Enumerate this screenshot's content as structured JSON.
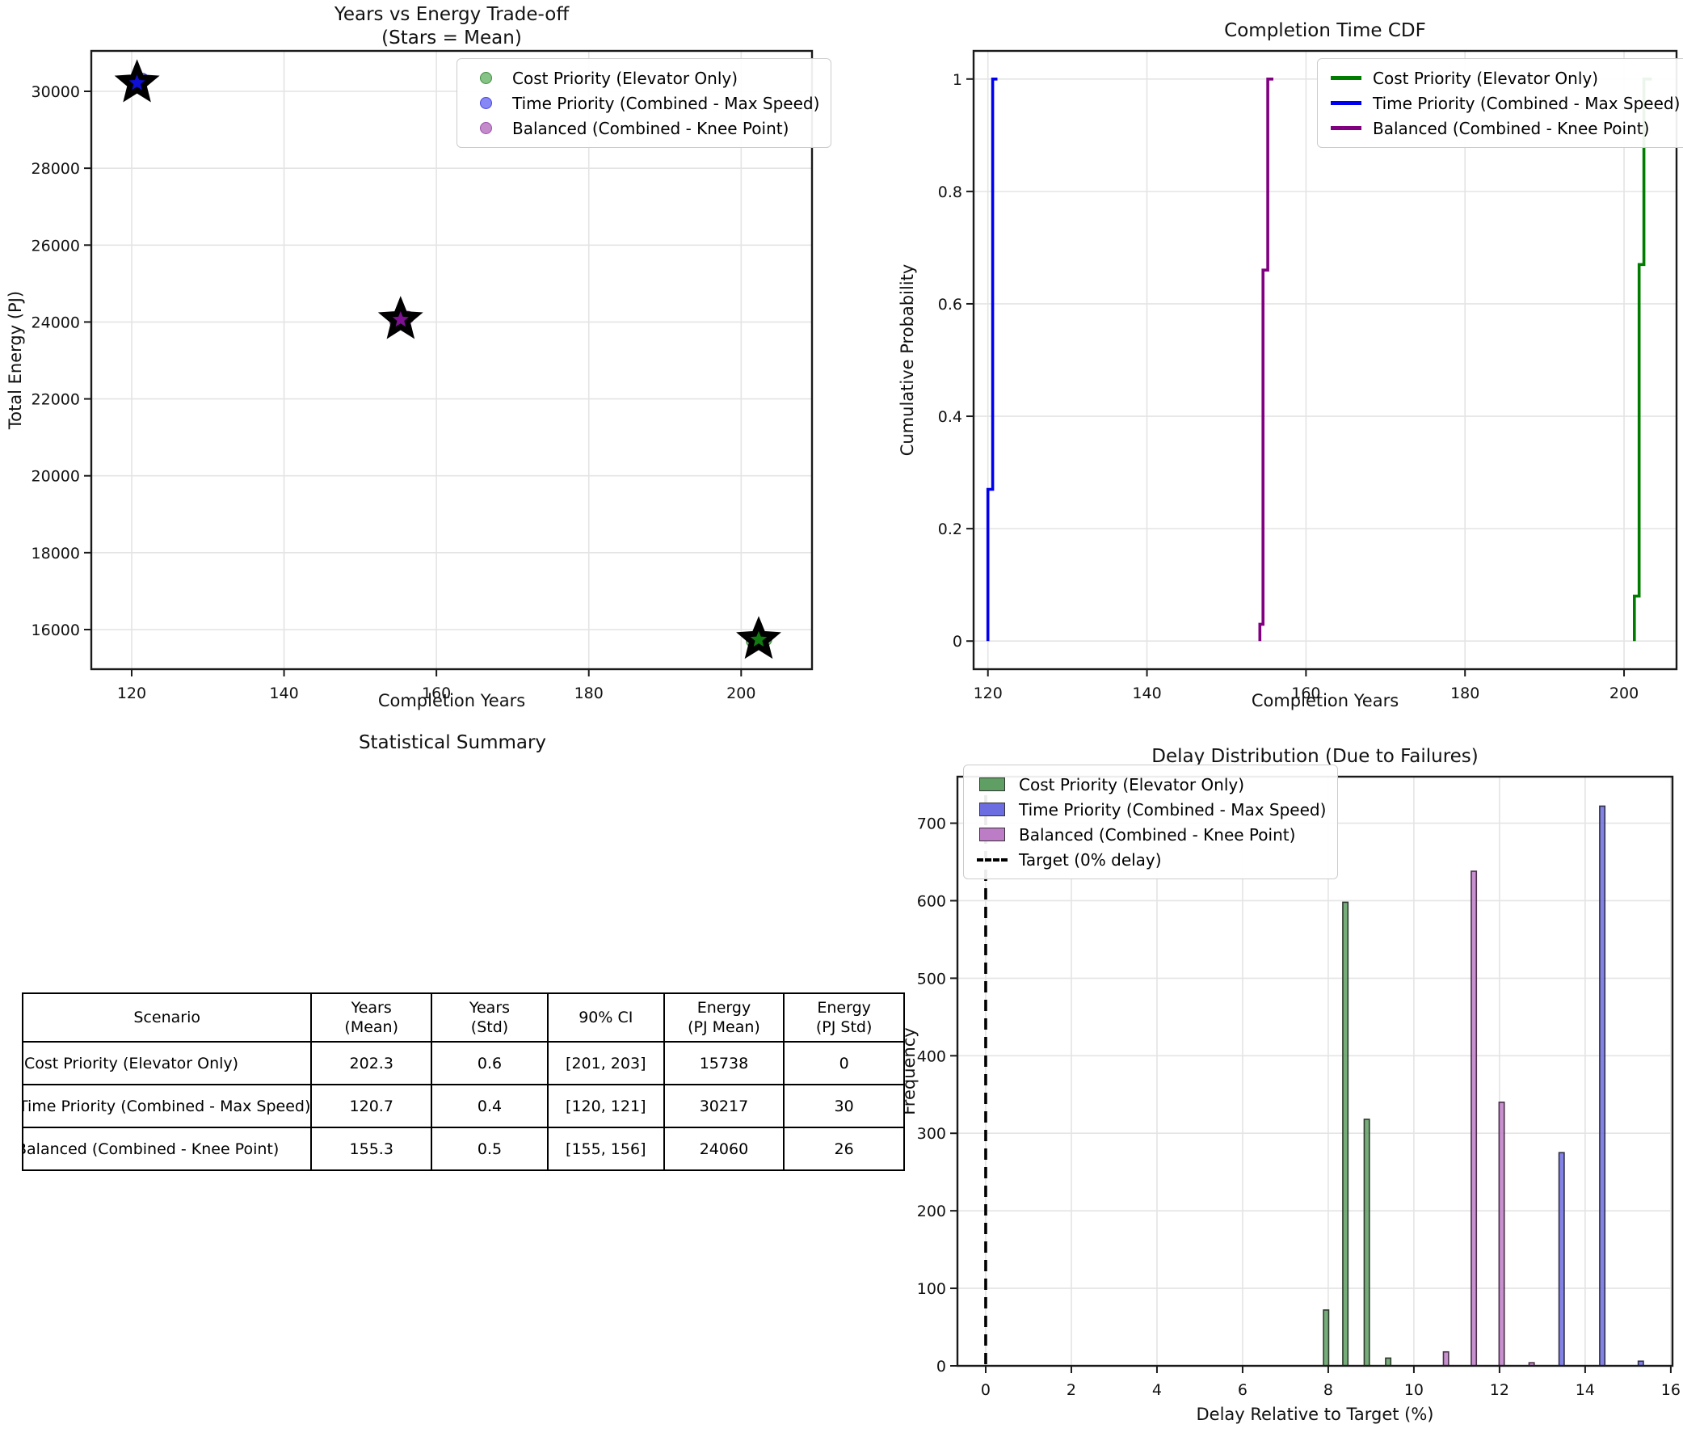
{
  "chart_data": [
    {
      "type": "scatter",
      "title": "Years vs Energy Trade-off\n(Stars = Mean)",
      "xlabel": "Completion Years",
      "ylabel": "Total Energy (PJ)",
      "xlim": [
        114.7,
        209.3
      ],
      "ylim": [
        14970,
        31051
      ],
      "xticks": [
        120,
        140,
        160,
        180,
        200
      ],
      "yticks": [
        16000,
        18000,
        20000,
        22000,
        24000,
        26000,
        28000,
        30000
      ],
      "grid": true,
      "legend_position": "upper right",
      "series": [
        {
          "name": "Cost Priority (Elevator Only)",
          "color": "#86c386",
          "edge": "#3f8f3f",
          "star_color": "#117a11",
          "points": [
            [
              201.5,
              15700
            ],
            [
              202.0,
              15760
            ],
            [
              202.9,
              15770
            ],
            [
              202.4,
              15690
            ],
            [
              203.2,
              15740
            ],
            [
              201.8,
              15725
            ]
          ],
          "mean": [
            202.3,
            15738
          ]
        },
        {
          "name": "Time Priority (Combined - Max Speed)",
          "color": "#8787f5",
          "edge": "#4646e0",
          "star_color": "#0f0fd6",
          "points": [
            [
              120.4,
              30180
            ],
            [
              120.8,
              30270
            ],
            [
              121.4,
              30310
            ],
            [
              120.6,
              30120
            ],
            [
              121.0,
              30230
            ],
            [
              120.3,
              30200
            ]
          ],
          "mean": [
            120.7,
            30217
          ]
        },
        {
          "name": "Balanced (Combined - Knee Point)",
          "color": "#c48bcb",
          "edge": "#9c4fae",
          "star_color": "#7d1191",
          "points": [
            [
              154.7,
              24000
            ],
            [
              155.1,
              24090
            ],
            [
              156.2,
              24120
            ],
            [
              154.9,
              23960
            ],
            [
              155.6,
              24040
            ],
            [
              156.0,
              24110
            ]
          ],
          "mean": [
            155.3,
            24060
          ]
        }
      ]
    },
    {
      "type": "line-step",
      "title": "Completion Time CDF",
      "xlabel": "Completion Years",
      "ylabel": "Cumulative Probability",
      "xlim": [
        118.2,
        206.6
      ],
      "ylim": [
        -0.05,
        1.05
      ],
      "xticks": [
        120,
        140,
        160,
        180,
        200
      ],
      "yticks": [
        0.0,
        0.2,
        0.4,
        0.6,
        0.8,
        1.0
      ],
      "grid": true,
      "legend_position": "upper right",
      "series": [
        {
          "name": "Cost Priority (Elevator Only)",
          "color": "#007c00",
          "points": [
            [
              201.3,
              0
            ],
            [
              201.3,
              0.08
            ],
            [
              201.9,
              0.08
            ],
            [
              201.9,
              0.67
            ],
            [
              202.5,
              0.67
            ],
            [
              202.5,
              1.0
            ],
            [
              203.5,
              1.0
            ]
          ]
        },
        {
          "name": "Time Priority (Combined - Max Speed)",
          "color": "#0000ee",
          "points": [
            [
              120.0,
              0
            ],
            [
              120.0,
              0.27
            ],
            [
              120.6,
              0.27
            ],
            [
              120.6,
              1.0
            ],
            [
              121.2,
              1.0
            ]
          ]
        },
        {
          "name": "Balanced (Combined - Knee Point)",
          "color": "#800080",
          "points": [
            [
              154.2,
              0
            ],
            [
              154.2,
              0.03
            ],
            [
              154.6,
              0.03
            ],
            [
              154.6,
              0.66
            ],
            [
              155.2,
              0.66
            ],
            [
              155.2,
              1.0
            ],
            [
              155.9,
              1.0
            ]
          ]
        }
      ]
    },
    {
      "type": "table",
      "title": "Statistical Summary",
      "headers": [
        "Scenario",
        "Years\n(Mean)",
        "Years\n(Std)",
        "90% CI",
        "Energy\n(PJ Mean)",
        "Energy\n(PJ Std)"
      ],
      "rows": [
        [
          "Cost Priority (Elevator Only)",
          "202.3",
          "0.6",
          "[201, 203]",
          "15738",
          "0"
        ],
        [
          "Time Priority (Combined - Max Speed)",
          "120.7",
          "0.4",
          "[120, 121]",
          "30217",
          "30"
        ],
        [
          "Balanced (Combined - Knee Point)",
          "155.3",
          "0.5",
          "[155, 156]",
          "24060",
          "26"
        ]
      ]
    },
    {
      "type": "bar",
      "title": "Delay Distribution (Due to Failures)",
      "xlabel": "Delay Relative to Target (%)",
      "ylabel": "Frequency",
      "xlim": [
        -0.66,
        16.04
      ],
      "ylim": [
        0,
        760
      ],
      "xticks": [
        0,
        2,
        4,
        6,
        8,
        10,
        12,
        14,
        16
      ],
      "yticks": [
        0,
        100,
        200,
        300,
        400,
        500,
        600,
        700
      ],
      "grid": true,
      "legend_position": "upper left",
      "bar_width": 0.12,
      "series": [
        {
          "name": "Cost Priority (Elevator Only)",
          "color": "#5f9f63",
          "edge": "#2e3a2e",
          "bars": [
            [
              7.95,
              72
            ],
            [
              8.4,
              598
            ],
            [
              8.9,
              318
            ],
            [
              9.4,
              10
            ]
          ]
        },
        {
          "name": "Time Priority (Combined - Max Speed)",
          "color": "#6d6de2",
          "edge": "#2f2f4a",
          "bars": [
            [
              13.45,
              275
            ],
            [
              14.4,
              722
            ],
            [
              15.3,
              6
            ]
          ]
        },
        {
          "name": "Balanced (Combined - Knee Point)",
          "color": "#bd7cc6",
          "edge": "#4a2f4a",
          "bars": [
            [
              10.75,
              18
            ],
            [
              11.4,
              638
            ],
            [
              12.05,
              340
            ],
            [
              12.75,
              4
            ]
          ]
        }
      ],
      "target_line": {
        "x": 0,
        "label": "Target (0% delay)",
        "color": "#000000",
        "style": "dashed"
      }
    }
  ],
  "colors": {
    "cost_priority": "#007c00",
    "time_priority": "#0000ee",
    "balanced": "#800080",
    "grid": "#e4e4e4",
    "spine": "#1a1a1a"
  }
}
